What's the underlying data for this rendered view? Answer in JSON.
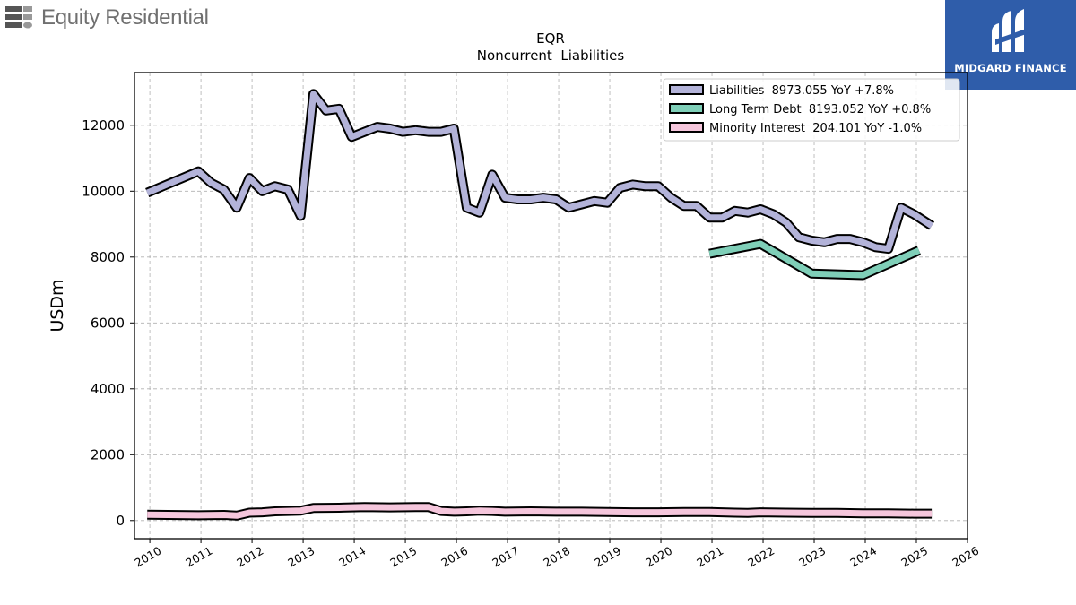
{
  "brand": {
    "name": "Equity Residential"
  },
  "badge": {
    "label": "MIDGARD FINANCE"
  },
  "chart_data": {
    "type": "line",
    "title": "EQR",
    "subtitle": "Noncurrent  Liabilities",
    "ylabel": "USDm",
    "xlabel": "",
    "xlim": [
      2009.7,
      2026.0
    ],
    "ylim": [
      -550,
      13600
    ],
    "x_ticks": [
      2010,
      2011,
      2012,
      2013,
      2014,
      2015,
      2016,
      2017,
      2018,
      2019,
      2020,
      2021,
      2022,
      2023,
      2024,
      2025,
      2026
    ],
    "y_ticks": [
      0,
      2000,
      4000,
      6000,
      8000,
      10000,
      12000
    ],
    "grid": true,
    "legend_position": "top-right",
    "series": [
      {
        "name": "Liabilities",
        "legend_label": "Liabilities  8973.055 YoY +7.8%",
        "color": "#b3b3d9",
        "points": [
          [
            2009.95,
            9950
          ],
          [
            2010.95,
            10600
          ],
          [
            2011.2,
            10250
          ],
          [
            2011.45,
            10050
          ],
          [
            2011.7,
            9500
          ],
          [
            2011.95,
            10400
          ],
          [
            2012.2,
            10000
          ],
          [
            2012.45,
            10150
          ],
          [
            2012.7,
            10050
          ],
          [
            2012.95,
            9250
          ],
          [
            2013.2,
            12950
          ],
          [
            2013.45,
            12450
          ],
          [
            2013.7,
            12500
          ],
          [
            2013.95,
            11650
          ],
          [
            2014.2,
            11800
          ],
          [
            2014.45,
            11950
          ],
          [
            2014.7,
            11900
          ],
          [
            2014.95,
            11800
          ],
          [
            2015.2,
            11850
          ],
          [
            2015.45,
            11800
          ],
          [
            2015.7,
            11800
          ],
          [
            2015.95,
            11900
          ],
          [
            2016.2,
            9500
          ],
          [
            2016.45,
            9350
          ],
          [
            2016.7,
            10500
          ],
          [
            2016.95,
            9800
          ],
          [
            2017.2,
            9750
          ],
          [
            2017.45,
            9750
          ],
          [
            2017.7,
            9800
          ],
          [
            2017.95,
            9750
          ],
          [
            2018.2,
            9500
          ],
          [
            2018.45,
            9600
          ],
          [
            2018.7,
            9700
          ],
          [
            2018.95,
            9650
          ],
          [
            2019.2,
            10100
          ],
          [
            2019.45,
            10200
          ],
          [
            2019.7,
            10150
          ],
          [
            2019.95,
            10150
          ],
          [
            2020.2,
            9800
          ],
          [
            2020.45,
            9550
          ],
          [
            2020.7,
            9550
          ],
          [
            2020.95,
            9200
          ],
          [
            2021.2,
            9200
          ],
          [
            2021.45,
            9400
          ],
          [
            2021.7,
            9350
          ],
          [
            2021.95,
            9450
          ],
          [
            2022.2,
            9300
          ],
          [
            2022.45,
            9050
          ],
          [
            2022.7,
            8600
          ],
          [
            2022.95,
            8500
          ],
          [
            2023.2,
            8450
          ],
          [
            2023.45,
            8550
          ],
          [
            2023.7,
            8550
          ],
          [
            2023.95,
            8450
          ],
          [
            2024.2,
            8300
          ],
          [
            2024.45,
            8250
          ],
          [
            2024.7,
            9500
          ],
          [
            2024.95,
            9300
          ],
          [
            2025.3,
            8950
          ]
        ]
      },
      {
        "name": "Long Term Debt",
        "legend_label": "Long Term Debt  8193.052 YoY +0.8%",
        "color": "#7fcfb8",
        "points": [
          [
            2020.95,
            8100
          ],
          [
            2021.95,
            8400
          ],
          [
            2022.95,
            7500
          ],
          [
            2023.95,
            7450
          ],
          [
            2025.05,
            8200
          ]
        ]
      },
      {
        "name": "Minority Interest",
        "legend_label": "Minority Interest  204.101 YoY -1.0%",
        "color": "#f5c6dc",
        "points": [
          [
            2009.95,
            180
          ],
          [
            2010.95,
            160
          ],
          [
            2011.45,
            170
          ],
          [
            2011.7,
            150
          ],
          [
            2011.95,
            240
          ],
          [
            2012.2,
            250
          ],
          [
            2012.45,
            280
          ],
          [
            2012.95,
            300
          ],
          [
            2013.2,
            380
          ],
          [
            2013.7,
            390
          ],
          [
            2014.2,
            410
          ],
          [
            2014.7,
            400
          ],
          [
            2015.2,
            410
          ],
          [
            2015.45,
            410
          ],
          [
            2015.7,
            290
          ],
          [
            2015.95,
            270
          ],
          [
            2016.2,
            280
          ],
          [
            2016.45,
            300
          ],
          [
            2016.7,
            290
          ],
          [
            2016.95,
            270
          ],
          [
            2017.45,
            280
          ],
          [
            2017.95,
            270
          ],
          [
            2018.45,
            270
          ],
          [
            2018.95,
            260
          ],
          [
            2019.45,
            250
          ],
          [
            2019.95,
            250
          ],
          [
            2020.45,
            260
          ],
          [
            2020.95,
            260
          ],
          [
            2021.45,
            240
          ],
          [
            2021.7,
            230
          ],
          [
            2021.95,
            250
          ],
          [
            2022.45,
            240
          ],
          [
            2022.95,
            230
          ],
          [
            2023.45,
            230
          ],
          [
            2023.95,
            220
          ],
          [
            2024.45,
            220
          ],
          [
            2024.95,
            210
          ],
          [
            2025.3,
            210
          ]
        ]
      }
    ]
  }
}
